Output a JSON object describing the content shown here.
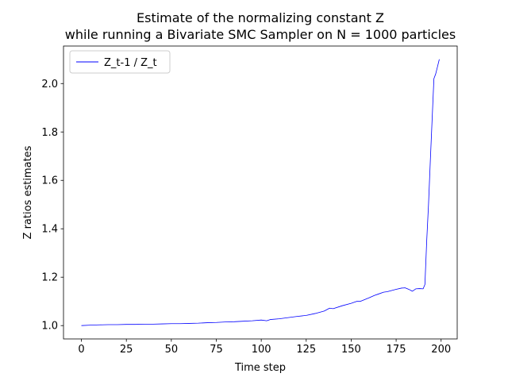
{
  "chart_data": {
    "type": "line",
    "title": "Estimate of the normalizing constant Z",
    "subtitle": "while running a Bivariate SMC Sampler on N = 1000 particles",
    "xlabel": "Time step",
    "ylabel": "Z ratios estimates",
    "xlim": [
      -9.95,
      208.95
    ],
    "ylim": [
      0.9449,
      2.155
    ],
    "xticks": [
      0,
      25,
      50,
      75,
      100,
      125,
      150,
      175,
      200
    ],
    "yticks": [
      1.0,
      1.2,
      1.4,
      1.6,
      1.8,
      2.0
    ],
    "ytick_labels": [
      "1.0",
      "1.2",
      "1.4",
      "1.6",
      "1.8",
      "2.0"
    ],
    "grid": false,
    "legend_position": "top-left",
    "series": [
      {
        "name": "Z_t-1 / Z_t",
        "color": "#0000ff",
        "x": [
          0,
          5,
          10,
          15,
          20,
          25,
          30,
          35,
          40,
          45,
          50,
          55,
          60,
          65,
          70,
          75,
          80,
          85,
          90,
          95,
          100,
          103,
          105,
          110,
          115,
          120,
          125,
          130,
          135,
          138,
          140,
          145,
          150,
          153,
          155,
          160,
          163,
          165,
          168,
          170,
          175,
          178,
          180,
          182,
          184,
          186,
          188,
          190,
          191,
          192,
          193,
          194,
          195,
          196,
          197,
          198,
          199
        ],
        "values": [
          1.0,
          1.002,
          1.003,
          1.004,
          1.004,
          1.005,
          1.005,
          1.006,
          1.006,
          1.007,
          1.008,
          1.008,
          1.009,
          1.01,
          1.012,
          1.013,
          1.015,
          1.016,
          1.018,
          1.02,
          1.023,
          1.02,
          1.025,
          1.028,
          1.033,
          1.038,
          1.042,
          1.05,
          1.06,
          1.072,
          1.07,
          1.082,
          1.092,
          1.1,
          1.1,
          1.115,
          1.125,
          1.13,
          1.138,
          1.14,
          1.15,
          1.155,
          1.156,
          1.15,
          1.142,
          1.152,
          1.153,
          1.152,
          1.17,
          1.35,
          1.5,
          1.68,
          1.85,
          2.02,
          2.04,
          2.07,
          2.1
        ]
      }
    ]
  }
}
